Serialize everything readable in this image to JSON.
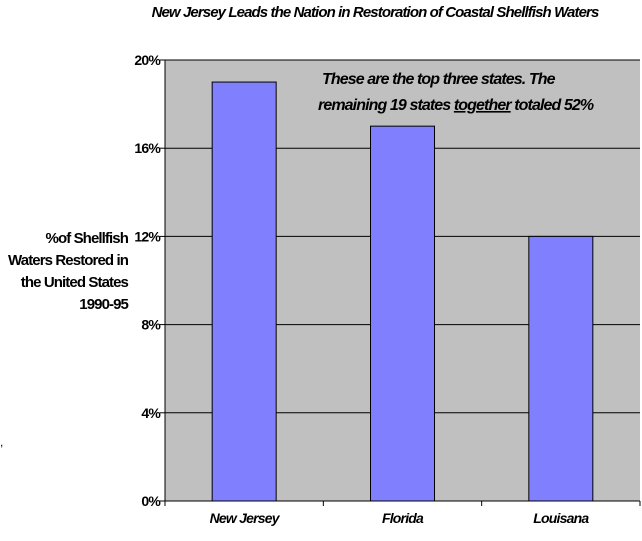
{
  "chart_data": {
    "type": "bar",
    "title": "New Jersey Leads the Nation in Restoration of Coastal Shellfish Waters",
    "ylabel": "%of Shellfish Waters Restored in the United States 1990-95",
    "xlabel": "",
    "categories": [
      "New Jersey",
      "Florida",
      "Louisana"
    ],
    "values": [
      19,
      17,
      12
    ],
    "ylim": [
      0,
      20
    ],
    "y_ticks": [
      0,
      4,
      8,
      12,
      16,
      20
    ],
    "y_tick_labels": [
      "0%",
      "4%",
      "8%",
      "12%",
      "16%",
      "20%"
    ],
    "annotation": {
      "line1": "These are the top three states.  The",
      "line2_before": "remaining 19 states ",
      "line2_underlined": "together",
      "line2_after": " totaled 52%"
    },
    "grid": true,
    "legend": "none",
    "colors": {
      "plot_background": "#c0c0c0",
      "bar_fill": "#8080ff",
      "bar_edge": "#000000",
      "gridline": "#000000"
    }
  },
  "stray_mark": ","
}
